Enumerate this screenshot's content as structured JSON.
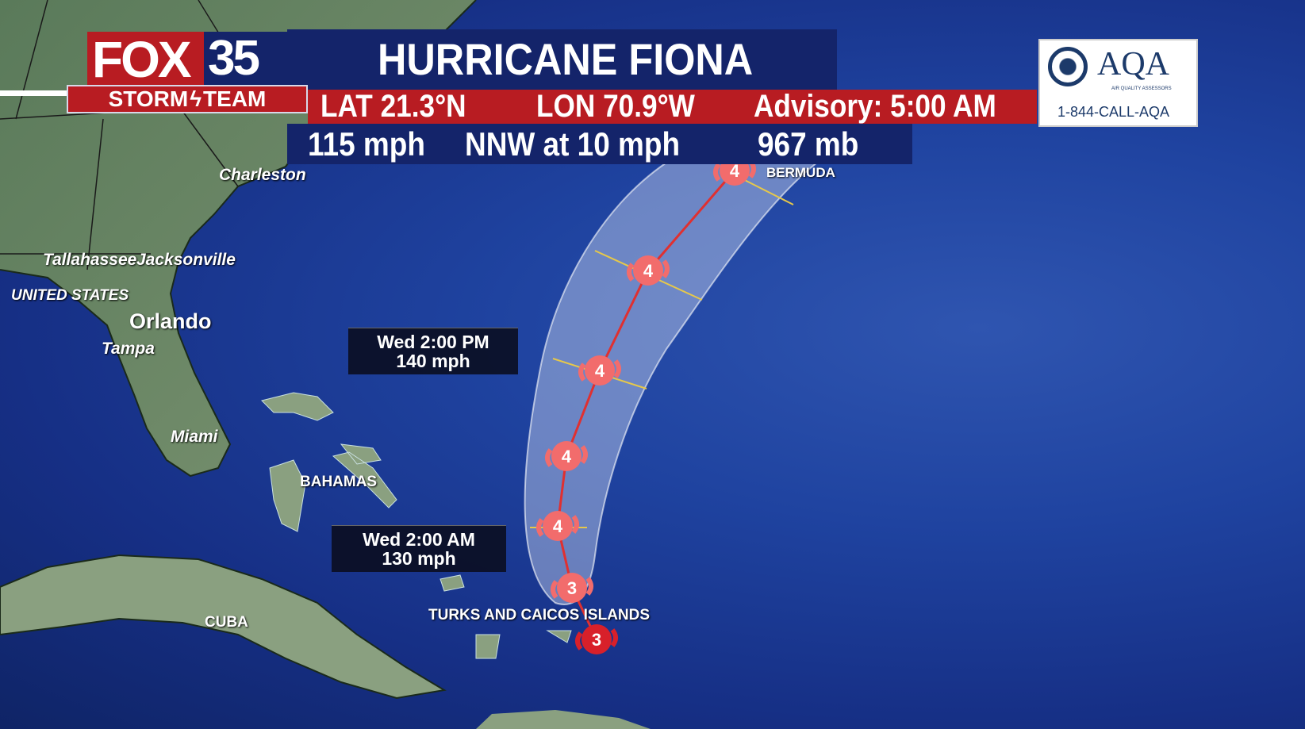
{
  "branding": {
    "station": "FOX",
    "channel": "35",
    "team": "STORM",
    "team2": "TEAM"
  },
  "header": {
    "title": "HURRICANE FIONA",
    "lat": "LAT 21.3°N",
    "lon": "LON 70.9°W",
    "advisory": "Advisory: 5:00 AM",
    "wind": "115 mph",
    "movement": "NNW at 10 mph",
    "pressure": "967 mb"
  },
  "sponsor": {
    "name": "AQA",
    "tagline": "AIR QUALITY ASSESSORS",
    "phone": "1-844-CALL-AQA"
  },
  "map_labels": {
    "charleston": "Charleston",
    "tallahassee": "Tallahassee",
    "jacksonville": "Jacksonville",
    "us": "UNITED STATES",
    "orlando": "Orlando",
    "tampa": "Tampa",
    "miami": "Miami",
    "bahamas": "BAHAMAS",
    "cuba": "CUBA",
    "turks": "TURKS AND CAICOS ISLANDS",
    "bermuda": "BERMUDA"
  },
  "forecast_boxes": [
    {
      "time": "Wed 2:00 PM",
      "wind": "140 mph"
    },
    {
      "time": "Wed 2:00 AM",
      "wind": "130 mph"
    }
  ],
  "track": {
    "categories": [
      3,
      3,
      4,
      4,
      4,
      4,
      4
    ],
    "colors": {
      "current": "#d8202a",
      "forecast": "#f26c6c",
      "cone": "#c9d4f0",
      "line": "#e03030"
    }
  }
}
